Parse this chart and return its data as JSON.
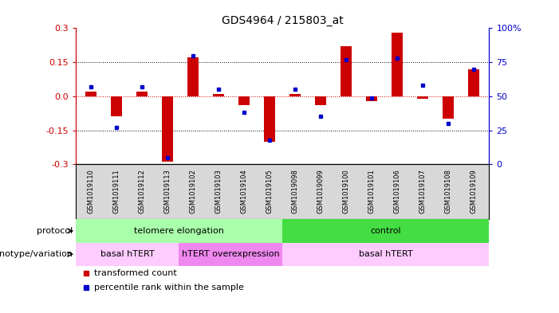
{
  "title": "GDS4964 / 215803_at",
  "samples": [
    "GSM1019110",
    "GSM1019111",
    "GSM1019112",
    "GSM1019113",
    "GSM1019102",
    "GSM1019103",
    "GSM1019104",
    "GSM1019105",
    "GSM1019098",
    "GSM1019099",
    "GSM1019100",
    "GSM1019101",
    "GSM1019106",
    "GSM1019107",
    "GSM1019108",
    "GSM1019109"
  ],
  "transformed_count": [
    0.02,
    -0.09,
    0.02,
    -0.29,
    0.17,
    0.01,
    -0.04,
    -0.2,
    0.01,
    -0.04,
    0.22,
    -0.02,
    0.28,
    -0.01,
    -0.1,
    0.12
  ],
  "percentile_rank": [
    57,
    27,
    57,
    5,
    80,
    55,
    38,
    18,
    55,
    35,
    77,
    49,
    78,
    58,
    30,
    70
  ],
  "ylim": [
    -0.3,
    0.3
  ],
  "yticks_left": [
    -0.3,
    -0.15,
    0.0,
    0.15,
    0.3
  ],
  "yticks_right_labels": [
    "0",
    "25",
    "50",
    "75",
    "100%"
  ],
  "hline_positions": [
    0.15,
    -0.15
  ],
  "protocol_labels": [
    "telomere elongation",
    "control"
  ],
  "protocol_ranges": [
    [
      0,
      8
    ],
    [
      8,
      16
    ]
  ],
  "protocol_colors": [
    "#aaffaa",
    "#44dd44"
  ],
  "genotype_labels": [
    "basal hTERT",
    "hTERT overexpression",
    "basal hTERT"
  ],
  "genotype_ranges": [
    [
      0,
      4
    ],
    [
      4,
      8
    ],
    [
      8,
      16
    ]
  ],
  "genotype_colors": [
    "#ffccff",
    "#ee88ee",
    "#ffccff"
  ],
  "bar_color": "#cc0000",
  "dot_color": "#0000cc",
  "left_axis_color": "#cc0000",
  "right_axis_color": "#0000cc",
  "sample_bg": "#d8d8d8"
}
